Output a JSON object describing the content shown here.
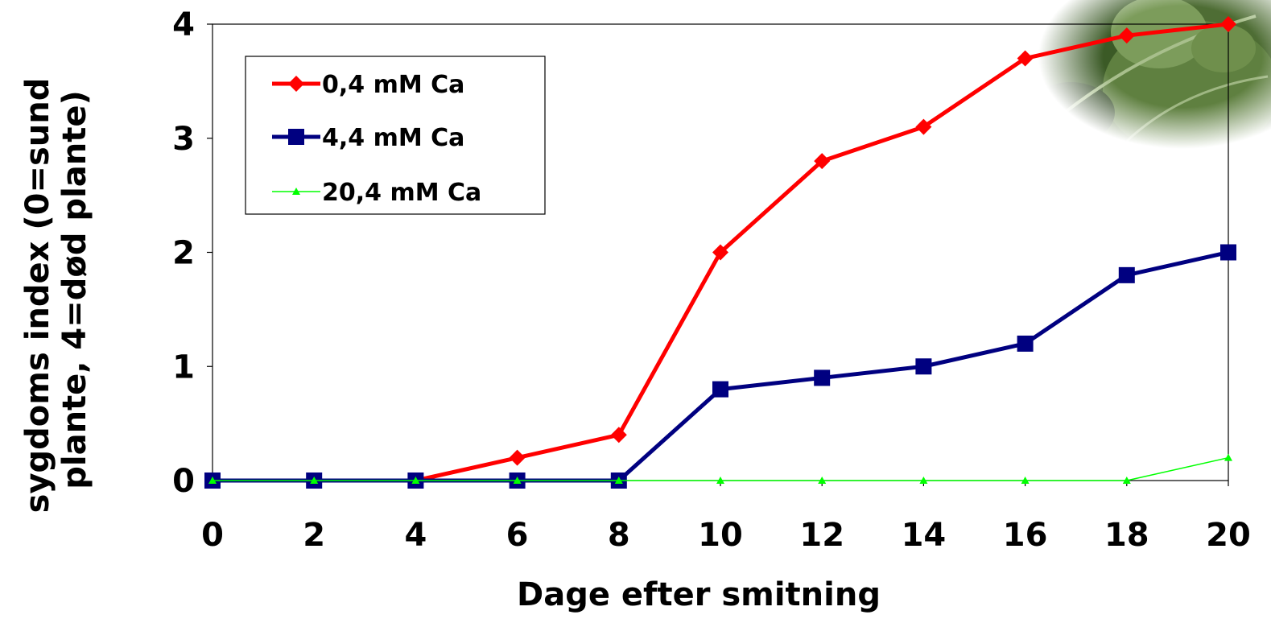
{
  "chart_data": {
    "type": "line",
    "xlabel": "Dage efter smitning",
    "ylabel_lines": [
      "sygdoms index (0=sund",
      "plante, 4=død plante)"
    ],
    "xlim": [
      0,
      20
    ],
    "ylim": [
      0,
      4
    ],
    "x": [
      0,
      2,
      4,
      6,
      8,
      10,
      12,
      14,
      16,
      18,
      20
    ],
    "x_tick_labels": [
      "0",
      "2",
      "4",
      "6",
      "8",
      "10",
      "12",
      "14",
      "16",
      "18",
      "20"
    ],
    "y_ticks": [
      0,
      1,
      2,
      3,
      4
    ],
    "y_tick_labels": [
      "0",
      "1",
      "2",
      "3",
      "4"
    ],
    "grid": false,
    "legend_position": "top-left",
    "series": [
      {
        "name": "0,4 mM Ca",
        "color": "#ff0000",
        "marker": "diamond",
        "values": [
          0,
          0,
          0,
          0.2,
          0.4,
          2.0,
          2.8,
          3.1,
          3.7,
          3.9,
          4.0
        ]
      },
      {
        "name": "4,4 mM Ca",
        "color": "#000080",
        "marker": "square",
        "values": [
          0,
          0,
          0,
          0,
          0,
          0.8,
          0.9,
          1.0,
          1.2,
          1.8,
          2.0
        ]
      },
      {
        "name": "20,4 mM Ca",
        "color": "#00ff00",
        "marker": "triangle",
        "values": [
          0,
          0,
          0,
          0,
          0,
          0,
          0,
          0,
          0,
          0,
          0.2
        ]
      }
    ],
    "decoration": {
      "photo": "leaf-photo",
      "colors": [
        "#2f4a22",
        "#5b7a3a",
        "#8aa86a"
      ]
    }
  }
}
